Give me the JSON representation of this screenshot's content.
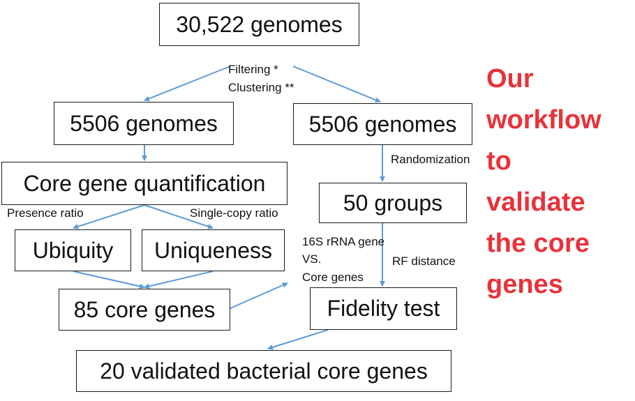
{
  "boxes": {
    "top": "30,522 genomes",
    "left_genomes": "5506 genomes",
    "right_genomes": "5506 genomes",
    "quantification": "Core gene quantification",
    "groups": "50 groups",
    "ubiquity": "Ubiquity",
    "uniqueness": "Uniqueness",
    "core_genes": "85 core genes",
    "fidelity": "Fidelity test",
    "validated": "20 validated bacterial core genes"
  },
  "labels": {
    "filtering": "Filtering *",
    "clustering": "Clustering **",
    "randomization": "Randomization",
    "presence_ratio": "Presence ratio",
    "single_copy_ratio": "Single-copy ratio",
    "rrna_line1": "16S rRNA gene",
    "rrna_line2": "VS.",
    "rrna_line3": "Core genes",
    "rf_distance": "RF distance"
  },
  "title_lines": [
    "Our",
    "workflow",
    "to",
    "validate",
    "the core",
    "genes"
  ],
  "colors": {
    "arrow": "#5b9bd5",
    "title": "#e8323a",
    "border": "#1a1a1a"
  }
}
